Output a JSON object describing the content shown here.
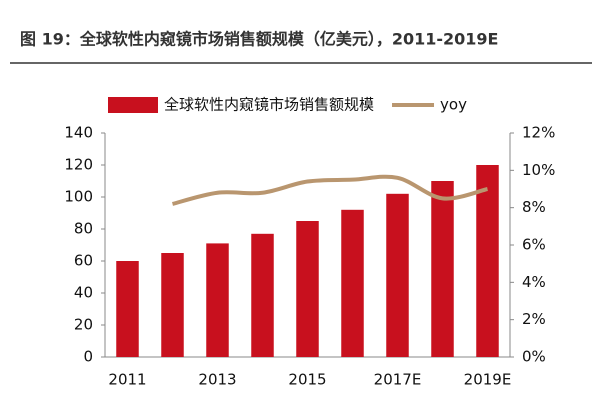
{
  "chart_data": {
    "type": "bar",
    "title": "图 19：全球软性内窥镜市场销售额规模（亿美元），2011-2019E",
    "categories": [
      "2011",
      null,
      "2013",
      null,
      "2015",
      null,
      "2017E",
      null,
      "2019E"
    ],
    "series": [
      {
        "name": "全球软性内窥镜市场销售额规模",
        "color": "#c8101e",
        "type": "bar",
        "values": [
          60,
          65,
          71,
          77,
          85,
          92,
          102,
          110,
          120
        ]
      },
      {
        "name": "yoy",
        "color": "#b9966f",
        "type": "line",
        "axis": "y2",
        "values": [
          null,
          8.2,
          8.8,
          8.8,
          9.4,
          9.5,
          9.6,
          8.5,
          9.0
        ]
      }
    ],
    "ylim": [
      0,
      140
    ],
    "yticks": [
      0,
      20,
      40,
      60,
      80,
      100,
      120,
      140
    ],
    "y2lim": [
      0,
      12
    ],
    "y2ticks": [
      {
        "value": 0,
        "label": "0%"
      },
      {
        "value": 2,
        "label": "2%"
      },
      {
        "value": 4,
        "label": "4%"
      },
      {
        "value": 6,
        "label": "6%"
      },
      {
        "value": 8,
        "label": "8%"
      },
      {
        "value": 10,
        "label": "10%"
      },
      {
        "value": 12,
        "label": "12%"
      }
    ],
    "legend": "top"
  }
}
